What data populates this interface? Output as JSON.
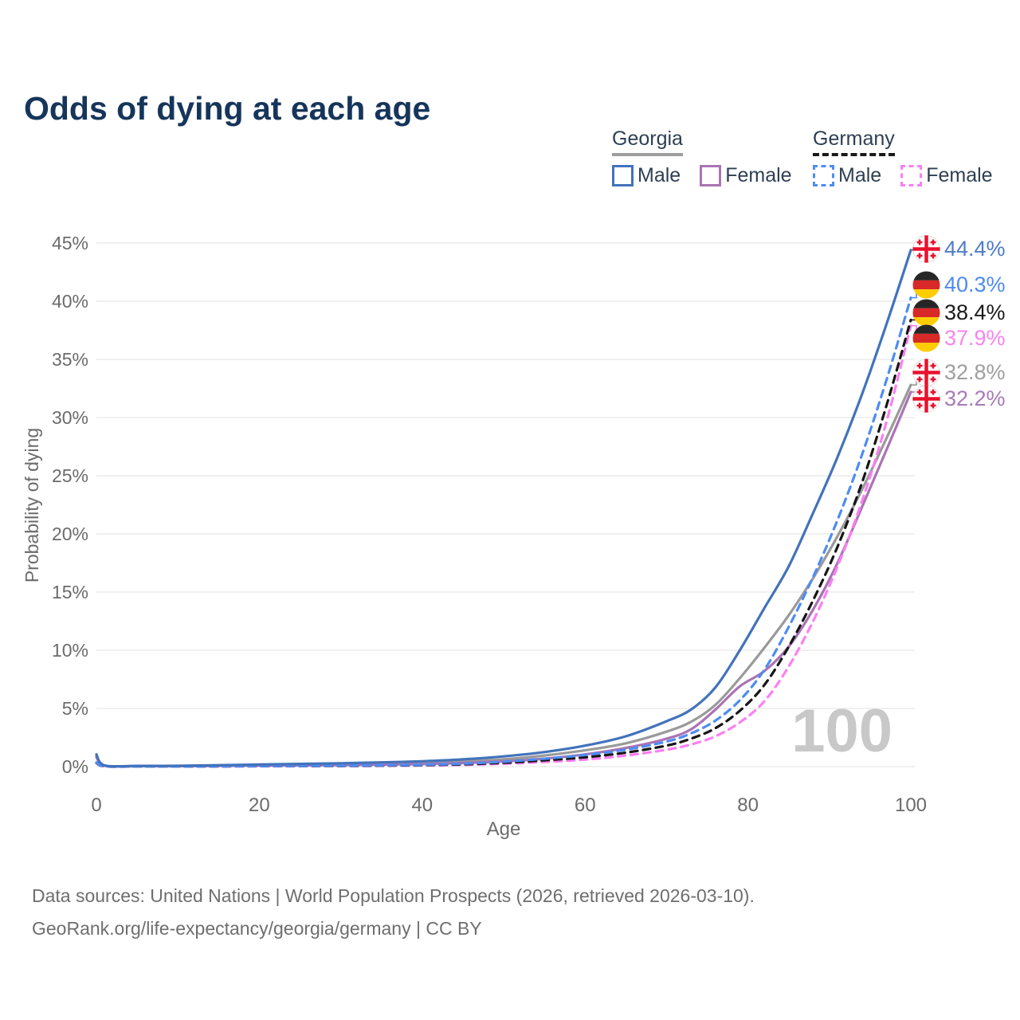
{
  "title": "Odds of dying at each age",
  "watermark": "100",
  "legend": {
    "groups": [
      {
        "title": "Georgia",
        "underline_style": "solid",
        "underline_color": "#9e9e9e",
        "items": [
          {
            "label": "Male",
            "color": "#4273bb",
            "dash": false
          },
          {
            "label": "Female",
            "color": "#aa73b4",
            "dash": false
          }
        ]
      },
      {
        "title": "Germany",
        "underline_style": "dashed",
        "underline_color": "#1a1a1a",
        "items": [
          {
            "label": "Male",
            "color": "#4e8cf2",
            "dash": true
          },
          {
            "label": "Female",
            "color": "#fb7ff2",
            "dash": true
          }
        ]
      }
    ]
  },
  "chart_data": {
    "type": "line",
    "title": "Odds of dying at each age",
    "xlabel": "Age",
    "ylabel": "Probability of dying",
    "xlim": [
      0,
      100
    ],
    "ylim": [
      0,
      45
    ],
    "grid": "horizontal",
    "legend_position": "top-right",
    "x_ticks": [
      0,
      20,
      40,
      60,
      80,
      100
    ],
    "y_ticks": [
      {
        "v": 0,
        "label": "0%"
      },
      {
        "v": 5,
        "label": "5%"
      },
      {
        "v": 10,
        "label": "10%"
      },
      {
        "v": 15,
        "label": "15%"
      },
      {
        "v": 20,
        "label": "20%"
      },
      {
        "v": 25,
        "label": "25%"
      },
      {
        "v": 30,
        "label": "30%"
      },
      {
        "v": 35,
        "label": "35%"
      },
      {
        "v": 40,
        "label": "40%"
      },
      {
        "v": 45,
        "label": "45%"
      }
    ],
    "x": [
      0,
      1,
      5,
      10,
      15,
      20,
      25,
      30,
      35,
      40,
      45,
      50,
      55,
      60,
      65,
      70,
      73,
      76,
      79,
      82,
      85,
      88,
      91,
      94,
      97,
      100
    ],
    "series": [
      {
        "name": "Georgia Both sexes",
        "country": "Georgia",
        "sex": "Both",
        "color": "#9a9a9a",
        "dash": false,
        "flag": "georgia",
        "end_label": "32.8%",
        "label_color": "#9e9e9e",
        "values": [
          0.92,
          0.08,
          0.05,
          0.05,
          0.09,
          0.13,
          0.16,
          0.2,
          0.25,
          0.33,
          0.45,
          0.63,
          0.95,
          1.4,
          2.0,
          3.0,
          3.85,
          5.3,
          7.6,
          10.2,
          13.0,
          16.2,
          19.8,
          23.8,
          28.2,
          32.8
        ]
      },
      {
        "name": "Georgia Female",
        "country": "Georgia",
        "sex": "Female",
        "color": "#aa73b4",
        "dash": false,
        "flag": "georgia",
        "end_label": "32.2%",
        "label_color": "#a87ab8",
        "values": [
          0.82,
          0.07,
          0.04,
          0.04,
          0.06,
          0.08,
          0.1,
          0.13,
          0.17,
          0.22,
          0.31,
          0.45,
          0.68,
          1.05,
          1.6,
          2.4,
          3.2,
          4.9,
          6.9,
          8.2,
          10.3,
          13.5,
          17.5,
          22.3,
          27.2,
          32.2
        ]
      },
      {
        "name": "Germany Female",
        "country": "Germany",
        "sex": "Female",
        "color": "#fb7ff2",
        "dash": true,
        "flag": "germany",
        "end_label": "37.9%",
        "label_color": "#f884f0",
        "values": [
          0.3,
          0.02,
          0.01,
          0.01,
          0.02,
          0.03,
          0.04,
          0.05,
          0.07,
          0.1,
          0.15,
          0.25,
          0.4,
          0.6,
          0.95,
          1.45,
          1.9,
          2.6,
          3.8,
          5.6,
          8.6,
          12.5,
          17.2,
          22.8,
          29.6,
          37.9
        ]
      },
      {
        "name": "Germany Both sexes",
        "country": "Germany",
        "sex": "Both",
        "color": "#161616",
        "dash": true,
        "flag": "germany",
        "end_label": "38.4%",
        "label_color": "#1a1a1a",
        "values": [
          0.32,
          0.03,
          0.01,
          0.01,
          0.02,
          0.04,
          0.05,
          0.06,
          0.09,
          0.13,
          0.2,
          0.33,
          0.54,
          0.8,
          1.2,
          1.8,
          2.4,
          3.3,
          4.8,
          7.0,
          10.3,
          14.3,
          18.9,
          24.4,
          31.0,
          38.4
        ]
      },
      {
        "name": "Germany Male",
        "country": "Germany",
        "sex": "Male",
        "color": "#4e8cf2",
        "dash": true,
        "flag": "germany",
        "end_label": "40.3%",
        "label_color": "#4e8bf0",
        "values": [
          0.35,
          0.03,
          0.01,
          0.01,
          0.03,
          0.05,
          0.06,
          0.08,
          0.11,
          0.16,
          0.25,
          0.42,
          0.68,
          1.0,
          1.45,
          2.15,
          2.85,
          3.95,
          5.7,
          8.3,
          12.0,
          16.3,
          21.2,
          26.8,
          33.2,
          40.3
        ]
      },
      {
        "name": "Georgia Male",
        "country": "Georgia",
        "sex": "Male",
        "color": "#4273bb",
        "dash": false,
        "flag": "georgia",
        "end_label": "44.4%",
        "label_color": "#4f7cc9",
        "values": [
          1.05,
          0.1,
          0.06,
          0.07,
          0.12,
          0.18,
          0.23,
          0.29,
          0.36,
          0.46,
          0.62,
          0.88,
          1.25,
          1.8,
          2.6,
          3.9,
          4.9,
          6.8,
          10.0,
          13.6,
          17.2,
          21.8,
          26.6,
          32.0,
          38.0,
          44.4
        ]
      }
    ]
  },
  "footer": {
    "line1": "Data sources: United Nations | World Population Prospects (2026, retrieved 2026-03-10).",
    "line2": "GeoRank.org/life-expectancy/georgia/germany | CC BY"
  }
}
